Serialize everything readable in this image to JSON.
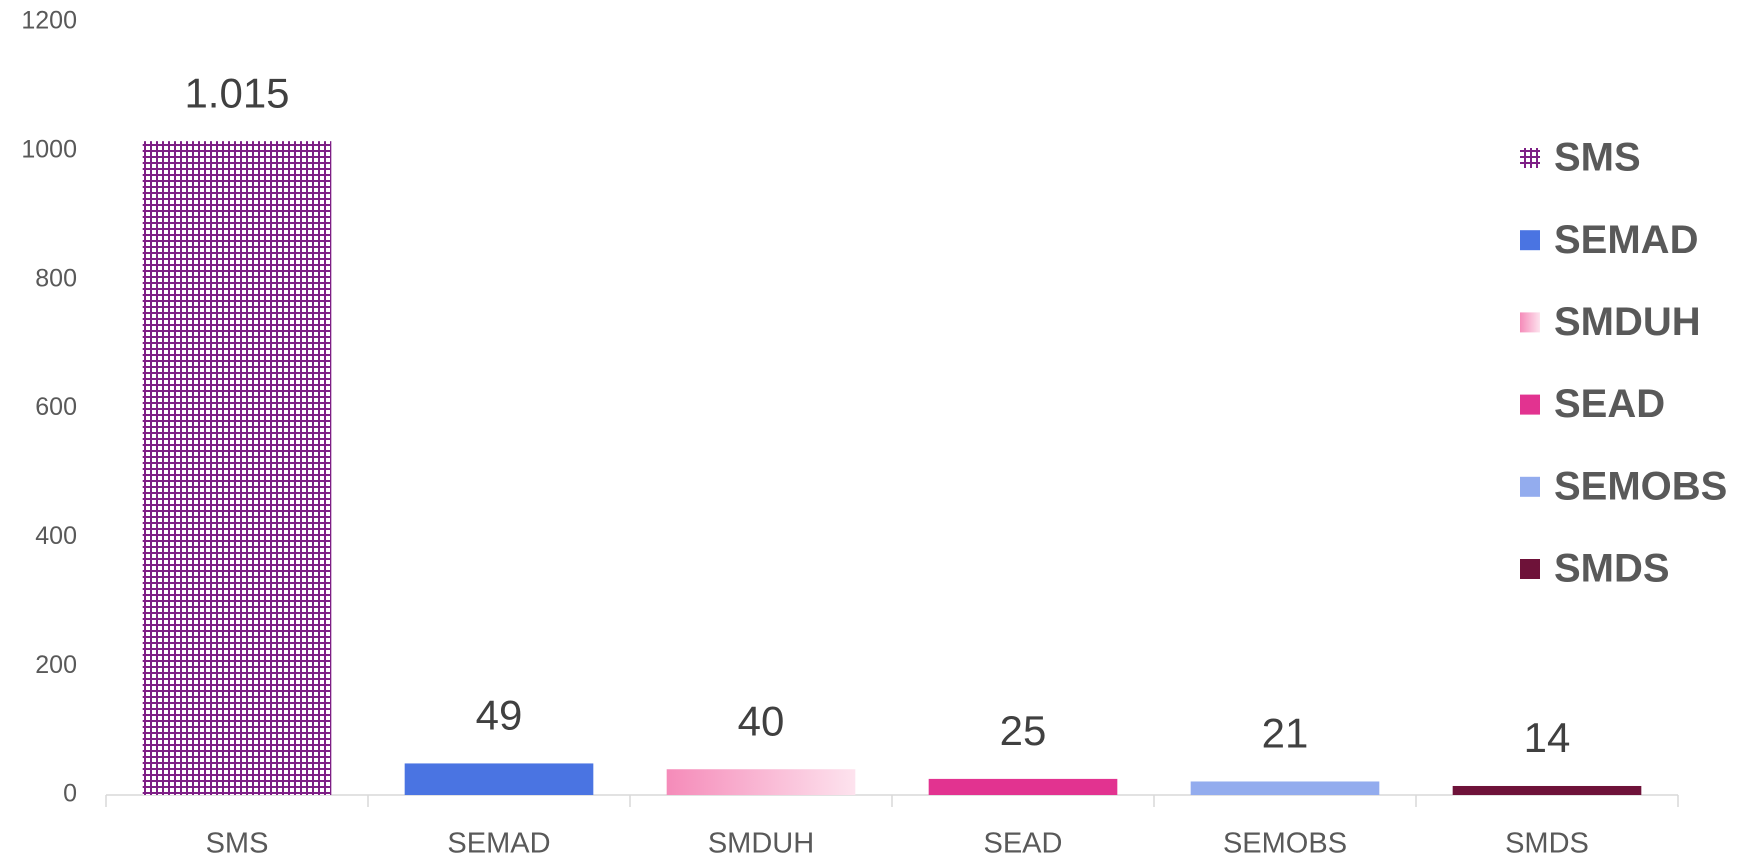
{
  "chart_data": {
    "type": "bar",
    "categories": [
      "SMS",
      "SEMAD",
      "SMDUH",
      "SEAD",
      "SEMOBS",
      "SMDS"
    ],
    "values": [
      1015,
      49,
      40,
      25,
      21,
      14
    ],
    "value_labels": [
      "1.015",
      "49",
      "40",
      "25",
      "21",
      "14"
    ],
    "colors": [
      "#7e1f86",
      "#4a74e2",
      "#f58bb9",
      "#e23390",
      "#93acee",
      "#6e1239"
    ],
    "patterns": [
      "grid",
      null,
      "gradient",
      null,
      null,
      null
    ],
    "ylim": [
      0,
      1200
    ],
    "yticks": [
      0,
      200,
      400,
      600,
      800,
      1000,
      1200
    ],
    "grid": false,
    "legend": "right"
  }
}
